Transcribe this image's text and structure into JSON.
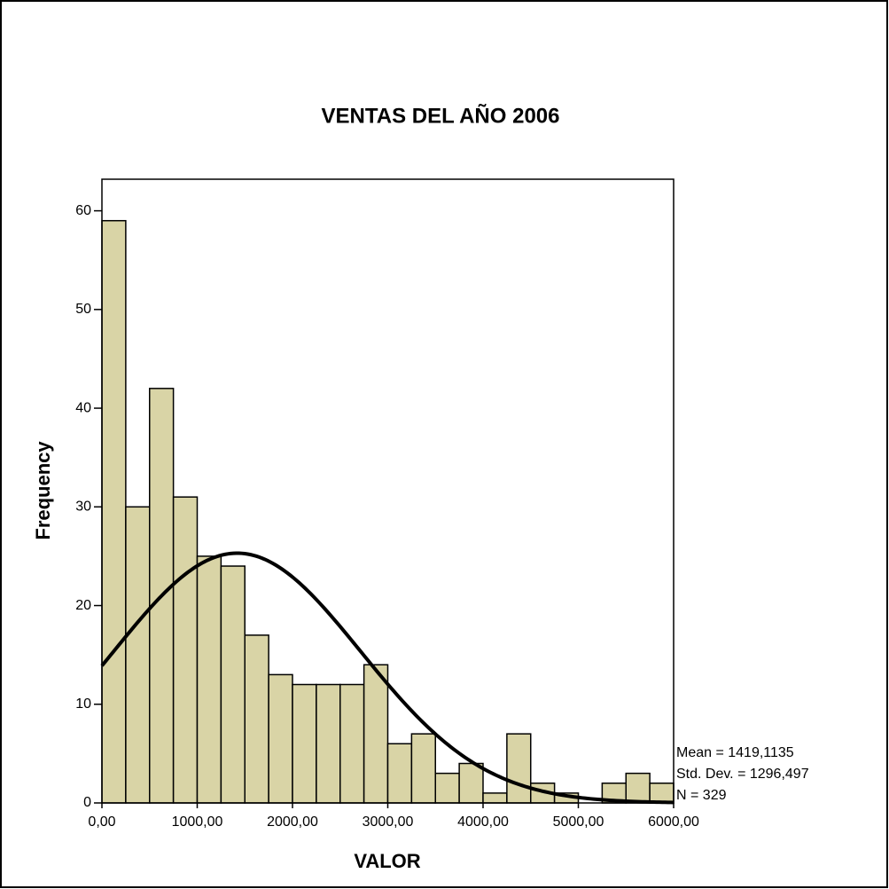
{
  "chart_data": {
    "type": "histogram",
    "title": "VENTAS DEL AÑO 2006",
    "x_label": "VALOR",
    "y_label": "Frequency",
    "bins": [
      0,
      250,
      500,
      750,
      1000,
      1250,
      1500,
      1750,
      2000,
      2250,
      2500,
      2750,
      3000,
      3250,
      3500,
      3750,
      4000,
      4250,
      4500,
      4750,
      5000,
      5250,
      5500,
      5750,
      6000
    ],
    "values": [
      59,
      30,
      42,
      31,
      25,
      24,
      17,
      13,
      12,
      12,
      12,
      14,
      6,
      7,
      3,
      4,
      1,
      7,
      2,
      1,
      0,
      2,
      3,
      2
    ],
    "color": "#d9d4a6",
    "xlim": [
      0,
      6000
    ],
    "xticks": [
      {
        "value": 0,
        "label": "0,00"
      },
      {
        "value": 1000,
        "label": "1000,00"
      },
      {
        "value": 2000,
        "label": "2000,00"
      },
      {
        "value": 3000,
        "label": "3000,00"
      },
      {
        "value": 4000,
        "label": "4000,00"
      },
      {
        "value": 5000,
        "label": "5000,00"
      },
      {
        "value": 6000,
        "label": "6000,00"
      }
    ],
    "ylim": [
      0,
      63.2
    ],
    "yticks": [
      0,
      10,
      20,
      30,
      40,
      50,
      60
    ],
    "stats": {
      "mean": {
        "value": 1419.1135,
        "label": "Mean = 1419,1135"
      },
      "std_dev": {
        "value": 1296.497,
        "label": "Std. Dev. = 1296,497"
      },
      "n": {
        "value": 329,
        "label": "N = 329"
      }
    }
  }
}
